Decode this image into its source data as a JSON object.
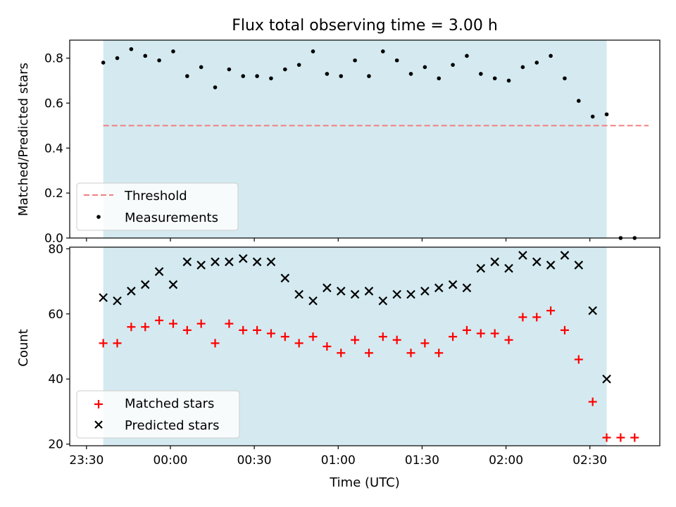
{
  "title": "Flux total observing time = 3.00 h",
  "colors": {
    "observing_window": "#d4eaf0",
    "threshold": "#f08080",
    "measurements": "#000000",
    "matched": "#ff0000",
    "predicted": "#000000"
  },
  "chart_data": [
    {
      "type": "scatter",
      "panel": "top",
      "ylabel": "Matched/Predicted stars",
      "xlabel": "",
      "ylim": [
        0.0,
        0.88
      ],
      "yticks": [
        0.0,
        0.2,
        0.4,
        0.6,
        0.8
      ],
      "ytick_labels": [
        "0.0",
        "0.2",
        "0.4",
        "0.6",
        "0.8"
      ],
      "xlim": [
        "23:24",
        "02:55"
      ],
      "grid": false,
      "legend": {
        "position": "bottom-left",
        "entries": [
          "Threshold",
          "Measurements"
        ]
      },
      "observing_window": [
        "23:36",
        "02:36"
      ],
      "threshold": {
        "name": "Threshold",
        "value": 0.5,
        "x": [
          "23:36",
          "02:51"
        ],
        "style": "dashed"
      },
      "series": [
        {
          "name": "Measurements",
          "marker": "dot",
          "x": [
            "23:36",
            "23:41",
            "23:46",
            "23:51",
            "23:56",
            "00:01",
            "00:06",
            "00:11",
            "00:16",
            "00:21",
            "00:26",
            "00:31",
            "00:36",
            "00:41",
            "00:46",
            "00:51",
            "00:56",
            "01:01",
            "01:06",
            "01:11",
            "01:16",
            "01:21",
            "01:26",
            "01:31",
            "01:36",
            "01:41",
            "01:46",
            "01:51",
            "01:56",
            "02:01",
            "02:06",
            "02:11",
            "02:16",
            "02:21",
            "02:26",
            "02:31",
            "02:36",
            "02:41",
            "02:46"
          ],
          "y": [
            0.78,
            0.8,
            0.84,
            0.81,
            0.79,
            0.83,
            0.72,
            0.76,
            0.67,
            0.75,
            0.72,
            0.72,
            0.71,
            0.75,
            0.77,
            0.83,
            0.73,
            0.72,
            0.79,
            0.72,
            0.83,
            0.79,
            0.73,
            0.76,
            0.71,
            0.77,
            0.81,
            0.73,
            0.71,
            0.7,
            0.76,
            0.78,
            0.81,
            0.71,
            0.61,
            0.54,
            0.55,
            0.0,
            0.0
          ]
        }
      ]
    },
    {
      "type": "scatter",
      "panel": "bottom",
      "ylabel": "Count",
      "xlabel": "Time (UTC)",
      "ylim": [
        19.5,
        80.5
      ],
      "yticks": [
        20,
        40,
        60,
        80
      ],
      "ytick_labels": [
        "20",
        "40",
        "60",
        "80"
      ],
      "xlim": [
        "23:24",
        "02:55"
      ],
      "xticks": [
        "23:30",
        "00:00",
        "00:30",
        "01:00",
        "01:30",
        "02:00",
        "02:30"
      ],
      "grid": false,
      "legend": {
        "position": "bottom-left",
        "entries": [
          "Matched stars",
          "Predicted stars"
        ]
      },
      "observing_window": [
        "23:36",
        "02:36"
      ],
      "x": [
        "23:36",
        "23:41",
        "23:46",
        "23:51",
        "23:56",
        "00:01",
        "00:06",
        "00:11",
        "00:16",
        "00:21",
        "00:26",
        "00:31",
        "00:36",
        "00:41",
        "00:46",
        "00:51",
        "00:56",
        "01:01",
        "01:06",
        "01:11",
        "01:16",
        "01:21",
        "01:26",
        "01:31",
        "01:36",
        "01:41",
        "01:46",
        "01:51",
        "01:56",
        "02:01",
        "02:06",
        "02:11",
        "02:16",
        "02:21",
        "02:26",
        "02:31",
        "02:36",
        "02:41",
        "02:46"
      ],
      "series": [
        {
          "name": "Matched stars",
          "marker": "plus",
          "values": [
            51,
            51,
            56,
            56,
            58,
            57,
            55,
            57,
            51,
            57,
            55,
            55,
            54,
            53,
            51,
            53,
            50,
            48,
            52,
            48,
            53,
            52,
            48,
            51,
            48,
            53,
            55,
            54,
            54,
            52,
            59,
            59,
            61,
            55,
            46,
            33,
            22,
            22,
            22
          ]
        },
        {
          "name": "Predicted stars",
          "marker": "x",
          "values": [
            65,
            64,
            67,
            69,
            73,
            69,
            76,
            75,
            76,
            76,
            77,
            76,
            76,
            71,
            66,
            64,
            68,
            67,
            66,
            67,
            64,
            66,
            66,
            67,
            68,
            69,
            68,
            74,
            76,
            74,
            78,
            76,
            75,
            78,
            75,
            61,
            40,
            null,
            null
          ]
        }
      ]
    }
  ]
}
